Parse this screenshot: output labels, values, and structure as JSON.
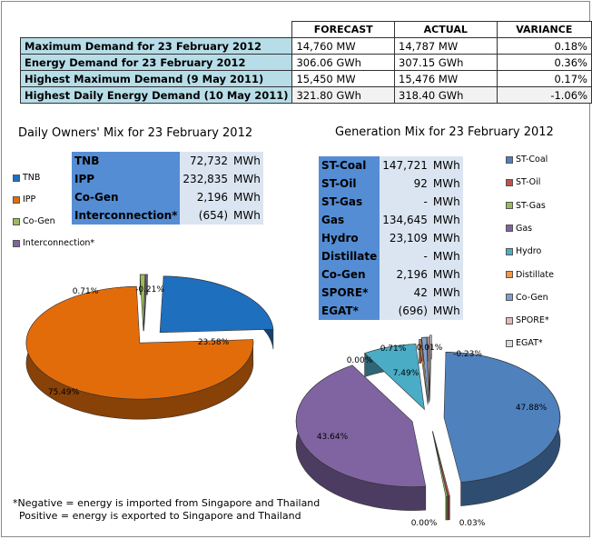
{
  "demand_table": {
    "headers": [
      "FORECAST",
      "ACTUAL",
      "VARIANCE"
    ],
    "rows": [
      {
        "label": "Maximum Demand for 23 February 2012",
        "forecast": "14,760  MW",
        "actual": "14,787  MW",
        "variance": "0.18%"
      },
      {
        "label": "Energy Demand for 23 February 2012",
        "forecast": "306.06  GWh",
        "actual": "307.15  GWh",
        "variance": "0.36%"
      },
      {
        "label": "Highest Maximum Demand (9 May 2011)",
        "forecast": "15,450  MW",
        "actual": "15,476  MW",
        "variance": "0.17%"
      },
      {
        "label": "Highest Daily Energy Demand (10 May 2011)",
        "forecast": "321.80  GWh",
        "actual": "318.40  GWh",
        "variance": "-1.06%"
      }
    ]
  },
  "owners_mix": {
    "title": "Daily Owners' Mix for 23 February 2012",
    "table": [
      {
        "name": "TNB",
        "value": "72,732",
        "unit": "MWh"
      },
      {
        "name": "IPP",
        "value": "232,835",
        "unit": "MWh"
      },
      {
        "name": "Co-Gen",
        "value": "2,196",
        "unit": "MWh"
      },
      {
        "name": "Interconnection*",
        "value": "(654)",
        "unit": "MWh"
      }
    ],
    "legend": [
      "TNB",
      "IPP",
      "Co-Gen",
      "Interconnection*"
    ]
  },
  "generation_mix": {
    "title": "Generation Mix for 23 February 2012",
    "table": [
      {
        "name": "ST-Coal",
        "value": "147,721",
        "unit": "MWh"
      },
      {
        "name": "ST-Oil",
        "value": "92",
        "unit": "MWh"
      },
      {
        "name": "ST-Gas",
        "value": "-",
        "unit": "MWh"
      },
      {
        "name": "Gas",
        "value": "134,645",
        "unit": "MWh"
      },
      {
        "name": "Hydro",
        "value": "23,109",
        "unit": "MWh"
      },
      {
        "name": "Distillate",
        "value": "-",
        "unit": "MWh"
      },
      {
        "name": "Co-Gen",
        "value": "2,196",
        "unit": "MWh"
      },
      {
        "name": "SPORE*",
        "value": "42",
        "unit": "MWh"
      },
      {
        "name": "EGAT*",
        "value": "(696)",
        "unit": "MWh"
      }
    ],
    "legend": [
      "ST-Coal",
      "ST-Oil",
      "ST-Gas",
      "Gas",
      "Hydro",
      "Distillate",
      "Co-Gen",
      "SPORE*",
      "EGAT*"
    ]
  },
  "chart_data": [
    {
      "type": "pie",
      "title": "Daily Owners' Mix for 23 February 2012",
      "categories": [
        "TNB",
        "IPP",
        "Co-Gen",
        "Interconnection*"
      ],
      "values": [
        23.58,
        75.49,
        0.71,
        -0.21
      ],
      "labels": [
        "23.58%",
        "75.49%",
        "0.71%",
        "-0.21%"
      ],
      "colors": [
        "#1f6fbf",
        "#e36c0a",
        "#9bbb59",
        "#8064a2"
      ],
      "legend": "left"
    },
    {
      "type": "pie",
      "title": "Generation Mix for 23 February 2012",
      "categories": [
        "ST-Coal",
        "ST-Oil",
        "ST-Gas",
        "Gas",
        "Hydro",
        "Distillate",
        "Co-Gen",
        "SPORE*",
        "EGAT*"
      ],
      "values": [
        47.88,
        0.03,
        0.0,
        43.64,
        7.49,
        0.0,
        0.71,
        0.01,
        -0.23
      ],
      "labels": [
        "47.88%",
        "0.03%",
        "0.00%",
        "43.64%",
        "7.49%",
        "0.00%",
        "0.71%",
        "0.01%",
        "-0.23%"
      ],
      "colors": [
        "#4f81bd",
        "#c0504d",
        "#9bbb59",
        "#8064a2",
        "#4bacc6",
        "#f79646",
        "#7f9fcf",
        "#e6b9b8",
        "#d9d9d9"
      ],
      "legend": "right"
    }
  ],
  "footnote": "*Negative = energy is imported from Singapore and Thailand\n  Positive = energy is exported to Singapore and Thailand"
}
